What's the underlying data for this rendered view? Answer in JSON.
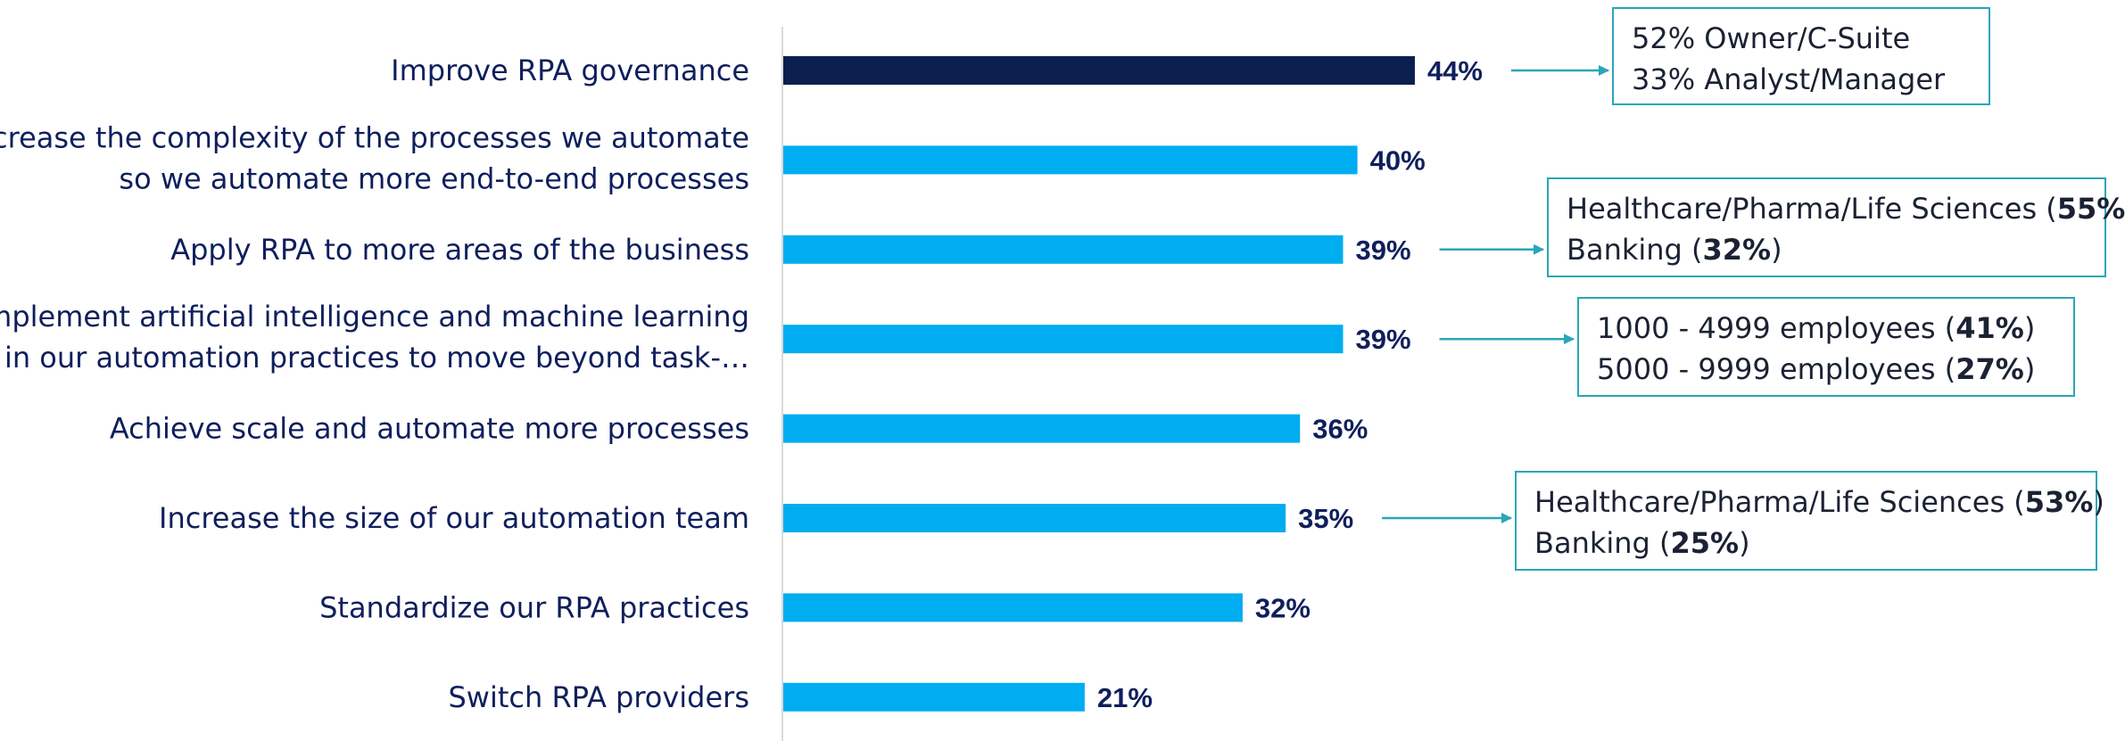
{
  "chart_data": {
    "type": "bar",
    "orientation": "horizontal",
    "categories": [
      [
        "Improve RPA governance"
      ],
      [
        "Increase the complexity of the processes we automate",
        "so we automate more end-to-end processes"
      ],
      [
        "Apply RPA to more areas of the business"
      ],
      [
        "Implement artificial intelligence and machine learning",
        "in our automation practices to move beyond task-…"
      ],
      [
        "Achieve scale and automate more processes"
      ],
      [
        "Increase the size of our automation team"
      ],
      [
        "Standardize our RPA practices"
      ],
      [
        "Switch RPA providers"
      ]
    ],
    "values": [
      44,
      40,
      39,
      39,
      36,
      35,
      32,
      21
    ],
    "value_labels": [
      "44%",
      "40%",
      "39%",
      "39%",
      "36%",
      "35%",
      "32%",
      "21%"
    ],
    "highlight_index": 0,
    "colors": {
      "highlight": "#0b1f4e",
      "default": "#00adf0",
      "label": "#0f1f5c",
      "callout_border": "#2aa6b8"
    },
    "xlim": [
      0,
      100
    ],
    "grid": false,
    "callouts": [
      {
        "bar_index": 0,
        "lines": [
          [
            {
              "t": "52% Owner/C-Suite"
            }
          ],
          [
            {
              "t": "33% Analyst/Manager"
            }
          ]
        ]
      },
      {
        "bar_index": 2,
        "lines": [
          [
            {
              "t": "Healthcare/Pharma/Life Sciences ("
            },
            {
              "t": "55%",
              "b": true
            },
            {
              "t": ")"
            }
          ],
          [
            {
              "t": "Banking ("
            },
            {
              "t": "32%",
              "b": true
            },
            {
              "t": ")"
            }
          ]
        ]
      },
      {
        "bar_index": 3,
        "lines": [
          [
            {
              "t": "1000 - 4999 employees ("
            },
            {
              "t": "41%",
              "b": true
            },
            {
              "t": ")"
            }
          ],
          [
            {
              "t": "5000 - 9999 employees ("
            },
            {
              "t": "27%",
              "b": true
            },
            {
              "t": ")"
            }
          ]
        ]
      },
      {
        "bar_index": 5,
        "lines": [
          [
            {
              "t": "Healthcare/Pharma/Life Sciences ("
            },
            {
              "t": "53%",
              "b": true
            },
            {
              "t": ")"
            }
          ],
          [
            {
              "t": "Banking ("
            },
            {
              "t": "25%",
              "b": true
            },
            {
              "t": ")"
            }
          ]
        ]
      }
    ]
  }
}
